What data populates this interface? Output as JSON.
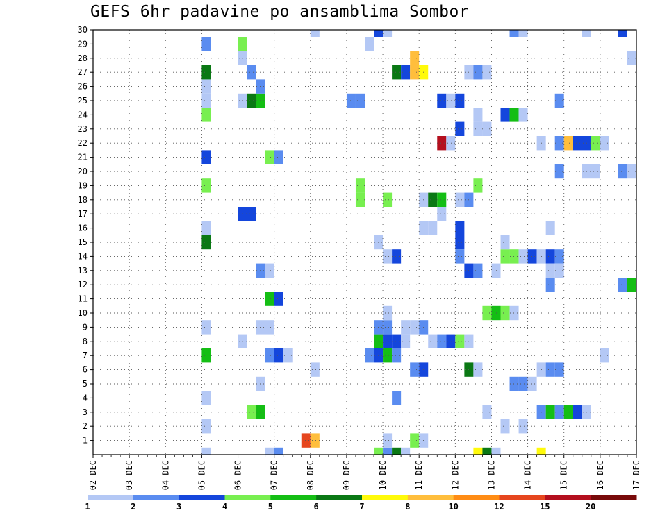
{
  "chart_data": {
    "type": "heatmap",
    "title": "GEFS 6hr padavine po ansamblima Sombor",
    "xlabel": "",
    "ylabel": "",
    "x_tick_labels": [
      "02 DEC",
      "03 DEC",
      "04 DEC",
      "05 DEC",
      "06 DEC",
      "07 DEC",
      "08 DEC",
      "09 DEC",
      "10 DEC",
      "11 DEC",
      "12 DEC",
      "13 DEC",
      "14 DEC",
      "15 DEC",
      "16 DEC",
      "17 DEC"
    ],
    "y_tick_labels": [
      "1",
      "2",
      "3",
      "4",
      "5",
      "6",
      "7",
      "8",
      "9",
      "10",
      "11",
      "12",
      "13",
      "14",
      "15",
      "16",
      "17",
      "18",
      "19",
      "20",
      "21",
      "22",
      "23",
      "24",
      "25",
      "26",
      "27",
      "28",
      "29",
      "30"
    ],
    "xlim": [
      0,
      60
    ],
    "ylim": [
      0,
      30
    ],
    "x_unit": "6h steps from 02 DEC 00Z",
    "y_unit": "ensemble member",
    "grid": true,
    "legend_position": "bottom",
    "colorbar": {
      "labels": [
        "1",
        "2",
        "3",
        "4",
        "5",
        "6",
        "7",
        "8",
        "10",
        "12",
        "15",
        "20"
      ],
      "colors": [
        "#b4c8f5",
        "#5a8cf0",
        "#1446dc",
        "#78ef50",
        "#14be14",
        "#0a7814",
        "#fffa0a",
        "#ffbe3c",
        "#ff8c14",
        "#e6461e",
        "#b40f1e",
        "#780a0a"
      ]
    },
    "cells": [
      {
        "x": 12,
        "y": 0,
        "v": 1
      },
      {
        "x": 12,
        "y": 2,
        "v": 1
      },
      {
        "x": 12,
        "y": 4,
        "v": 1
      },
      {
        "x": 12,
        "y": 7,
        "v": 5
      },
      {
        "x": 12,
        "y": 9,
        "v": 1
      },
      {
        "x": 12,
        "y": 15,
        "v": 6
      },
      {
        "x": 12,
        "y": 16,
        "v": 1
      },
      {
        "x": 12,
        "y": 19,
        "v": 4
      },
      {
        "x": 12,
        "y": 21,
        "v": 3
      },
      {
        "x": 12,
        "y": 24,
        "v": 4
      },
      {
        "x": 12,
        "y": 25,
        "v": 1
      },
      {
        "x": 12,
        "y": 26,
        "v": 1
      },
      {
        "x": 12,
        "y": 27,
        "v": 6
      },
      {
        "x": 12,
        "y": 29,
        "v": 2
      },
      {
        "x": 16,
        "y": 17,
        "v": 3
      },
      {
        "x": 17,
        "y": 17,
        "v": 3
      },
      {
        "x": 16,
        "y": 25,
        "v": 1
      },
      {
        "x": 17,
        "y": 25,
        "v": 6
      },
      {
        "x": 18,
        "y": 25,
        "v": 5
      },
      {
        "x": 16,
        "y": 28,
        "v": 1
      },
      {
        "x": 16,
        "y": 29,
        "v": 4
      },
      {
        "x": 17,
        "y": 27,
        "v": 2
      },
      {
        "x": 18,
        "y": 26,
        "v": 2
      },
      {
        "x": 16,
        "y": 8,
        "v": 1
      },
      {
        "x": 17,
        "y": 3,
        "v": 4
      },
      {
        "x": 18,
        "y": 3,
        "v": 5
      },
      {
        "x": 18,
        "y": 5,
        "v": 1
      },
      {
        "x": 18,
        "y": 9,
        "v": 1
      },
      {
        "x": 19,
        "y": 9,
        "v": 1
      },
      {
        "x": 18,
        "y": 13,
        "v": 2
      },
      {
        "x": 19,
        "y": 13,
        "v": 1
      },
      {
        "x": 19,
        "y": 7,
        "v": 2
      },
      {
        "x": 20,
        "y": 7,
        "v": 3
      },
      {
        "x": 21,
        "y": 7,
        "v": 1
      },
      {
        "x": 19,
        "y": 11,
        "v": 5
      },
      {
        "x": 20,
        "y": 11,
        "v": 3
      },
      {
        "x": 19,
        "y": 21,
        "v": 4
      },
      {
        "x": 20,
        "y": 21,
        "v": 2
      },
      {
        "x": 19,
        "y": 0,
        "v": 1
      },
      {
        "x": 20,
        "y": 0,
        "v": 2
      },
      {
        "x": 23,
        "y": 1,
        "v": 12
      },
      {
        "x": 24,
        "y": 1,
        "v": 8
      },
      {
        "x": 24,
        "y": 6,
        "v": 1
      },
      {
        "x": 24,
        "y": 30,
        "v": 1
      },
      {
        "x": 28,
        "y": 25,
        "v": 2
      },
      {
        "x": 29,
        "y": 25,
        "v": 2
      },
      {
        "x": 29,
        "y": 18,
        "v": 4
      },
      {
        "x": 29,
        "y": 19,
        "v": 4
      },
      {
        "x": 30,
        "y": 29,
        "v": 1
      },
      {
        "x": 30,
        "y": 7,
        "v": 2
      },
      {
        "x": 31,
        "y": 7,
        "v": 3
      },
      {
        "x": 32,
        "y": 7,
        "v": 5
      },
      {
        "x": 33,
        "y": 7,
        "v": 2
      },
      {
        "x": 31,
        "y": 8,
        "v": 5
      },
      {
        "x": 32,
        "y": 8,
        "v": 3
      },
      {
        "x": 33,
        "y": 8,
        "v": 3
      },
      {
        "x": 34,
        "y": 8,
        "v": 1
      },
      {
        "x": 31,
        "y": 9,
        "v": 2
      },
      {
        "x": 32,
        "y": 9,
        "v": 2
      },
      {
        "x": 34,
        "y": 9,
        "v": 1
      },
      {
        "x": 35,
        "y": 9,
        "v": 1
      },
      {
        "x": 36,
        "y": 9,
        "v": 2
      },
      {
        "x": 32,
        "y": 10,
        "v": 1
      },
      {
        "x": 31,
        "y": 15,
        "v": 1
      },
      {
        "x": 32,
        "y": 14,
        "v": 1
      },
      {
        "x": 33,
        "y": 14,
        "v": 3
      },
      {
        "x": 32,
        "y": 18,
        "v": 4
      },
      {
        "x": 31,
        "y": 0,
        "v": 4
      },
      {
        "x": 32,
        "y": 0,
        "v": 2
      },
      {
        "x": 33,
        "y": 0,
        "v": 6
      },
      {
        "x": 34,
        "y": 0,
        "v": 1
      },
      {
        "x": 32,
        "y": 1,
        "v": 1
      },
      {
        "x": 33,
        "y": 4,
        "v": 2
      },
      {
        "x": 35,
        "y": 1,
        "v": 4
      },
      {
        "x": 36,
        "y": 1,
        "v": 1
      },
      {
        "x": 31,
        "y": 30,
        "v": 3
      },
      {
        "x": 32,
        "y": 30,
        "v": 1
      },
      {
        "x": 33,
        "y": 27,
        "v": 6
      },
      {
        "x": 34,
        "y": 27,
        "v": 3
      },
      {
        "x": 35,
        "y": 27,
        "v": 8
      },
      {
        "x": 36,
        "y": 27,
        "v": 7
      },
      {
        "x": 35,
        "y": 28,
        "v": 8
      },
      {
        "x": 35,
        "y": 6,
        "v": 2
      },
      {
        "x": 36,
        "y": 6,
        "v": 3
      },
      {
        "x": 36,
        "y": 16,
        "v": 1
      },
      {
        "x": 37,
        "y": 16,
        "v": 1
      },
      {
        "x": 36,
        "y": 18,
        "v": 1
      },
      {
        "x": 37,
        "y": 18,
        "v": 6
      },
      {
        "x": 38,
        "y": 18,
        "v": 5
      },
      {
        "x": 38,
        "y": 17,
        "v": 1
      },
      {
        "x": 37,
        "y": 8,
        "v": 1
      },
      {
        "x": 38,
        "y": 8,
        "v": 2
      },
      {
        "x": 39,
        "y": 8,
        "v": 3
      },
      {
        "x": 40,
        "y": 8,
        "v": 4
      },
      {
        "x": 41,
        "y": 8,
        "v": 1
      },
      {
        "x": 38,
        "y": 25,
        "v": 3
      },
      {
        "x": 39,
        "y": 25,
        "v": 1
      },
      {
        "x": 40,
        "y": 25,
        "v": 3
      },
      {
        "x": 38,
        "y": 22,
        "v": 15
      },
      {
        "x": 39,
        "y": 22,
        "v": 1
      },
      {
        "x": 40,
        "y": 23,
        "v": 3
      },
      {
        "x": 40,
        "y": 18,
        "v": 1
      },
      {
        "x": 41,
        "y": 18,
        "v": 2
      },
      {
        "x": 40,
        "y": 16,
        "v": 3
      },
      {
        "x": 40,
        "y": 15,
        "v": 3
      },
      {
        "x": 40,
        "y": 14,
        "v": 2
      },
      {
        "x": 41,
        "y": 13,
        "v": 3
      },
      {
        "x": 42,
        "y": 13,
        "v": 2
      },
      {
        "x": 41,
        "y": 6,
        "v": 6
      },
      {
        "x": 42,
        "y": 6,
        "v": 1
      },
      {
        "x": 41,
        "y": 27,
        "v": 1
      },
      {
        "x": 42,
        "y": 27,
        "v": 2
      },
      {
        "x": 43,
        "y": 27,
        "v": 1
      },
      {
        "x": 42,
        "y": 24,
        "v": 1
      },
      {
        "x": 42,
        "y": 23,
        "v": 1
      },
      {
        "x": 43,
        "y": 23,
        "v": 1
      },
      {
        "x": 42,
        "y": 19,
        "v": 4
      },
      {
        "x": 42,
        "y": 0,
        "v": 7
      },
      {
        "x": 43,
        "y": 0,
        "v": 6
      },
      {
        "x": 44,
        "y": 0,
        "v": 1
      },
      {
        "x": 43,
        "y": 3,
        "v": 1
      },
      {
        "x": 44,
        "y": 13,
        "v": 1
      },
      {
        "x": 43,
        "y": 10,
        "v": 4
      },
      {
        "x": 44,
        "y": 10,
        "v": 5
      },
      {
        "x": 45,
        "y": 10,
        "v": 4
      },
      {
        "x": 46,
        "y": 10,
        "v": 1
      },
      {
        "x": 45,
        "y": 14,
        "v": 4
      },
      {
        "x": 46,
        "y": 14,
        "v": 4
      },
      {
        "x": 47,
        "y": 14,
        "v": 1
      },
      {
        "x": 48,
        "y": 14,
        "v": 3
      },
      {
        "x": 45,
        "y": 15,
        "v": 1
      },
      {
        "x": 45,
        "y": 24,
        "v": 3
      },
      {
        "x": 46,
        "y": 24,
        "v": 5
      },
      {
        "x": 47,
        "y": 24,
        "v": 1
      },
      {
        "x": 45,
        "y": 2,
        "v": 1
      },
      {
        "x": 47,
        "y": 2,
        "v": 1
      },
      {
        "x": 46,
        "y": 5,
        "v": 2
      },
      {
        "x": 47,
        "y": 5,
        "v": 2
      },
      {
        "x": 48,
        "y": 5,
        "v": 1
      },
      {
        "x": 46,
        "y": 30,
        "v": 2
      },
      {
        "x": 47,
        "y": 30,
        "v": 1
      },
      {
        "x": 49,
        "y": 14,
        "v": 1
      },
      {
        "x": 50,
        "y": 14,
        "v": 3
      },
      {
        "x": 51,
        "y": 14,
        "v": 2
      },
      {
        "x": 50,
        "y": 13,
        "v": 1
      },
      {
        "x": 51,
        "y": 13,
        "v": 1
      },
      {
        "x": 50,
        "y": 12,
        "v": 2
      },
      {
        "x": 49,
        "y": 6,
        "v": 1
      },
      {
        "x": 50,
        "y": 6,
        "v": 2
      },
      {
        "x": 51,
        "y": 6,
        "v": 2
      },
      {
        "x": 49,
        "y": 3,
        "v": 2
      },
      {
        "x": 50,
        "y": 3,
        "v": 5
      },
      {
        "x": 51,
        "y": 3,
        "v": 2
      },
      {
        "x": 52,
        "y": 3,
        "v": 5
      },
      {
        "x": 53,
        "y": 3,
        "v": 3
      },
      {
        "x": 54,
        "y": 3,
        "v": 1
      },
      {
        "x": 49,
        "y": 22,
        "v": 1
      },
      {
        "x": 51,
        "y": 22,
        "v": 2
      },
      {
        "x": 52,
        "y": 22,
        "v": 8
      },
      {
        "x": 53,
        "y": 22,
        "v": 3
      },
      {
        "x": 54,
        "y": 22,
        "v": 3
      },
      {
        "x": 55,
        "y": 22,
        "v": 4
      },
      {
        "x": 56,
        "y": 22,
        "v": 1
      },
      {
        "x": 50,
        "y": 16,
        "v": 1
      },
      {
        "x": 51,
        "y": 20,
        "v": 2
      },
      {
        "x": 51,
        "y": 25,
        "v": 2
      },
      {
        "x": 49,
        "y": 0,
        "v": 7
      },
      {
        "x": 54,
        "y": 20,
        "v": 1
      },
      {
        "x": 55,
        "y": 20,
        "v": 1
      },
      {
        "x": 54,
        "y": 30,
        "v": 1
      },
      {
        "x": 56,
        "y": 7,
        "v": 1
      },
      {
        "x": 58,
        "y": 12,
        "v": 2
      },
      {
        "x": 59,
        "y": 12,
        "v": 5
      },
      {
        "x": 58,
        "y": 20,
        "v": 2
      },
      {
        "x": 59,
        "y": 20,
        "v": 1
      },
      {
        "x": 59,
        "y": 28,
        "v": 1
      },
      {
        "x": 58,
        "y": 30,
        "v": 3
      }
    ]
  }
}
